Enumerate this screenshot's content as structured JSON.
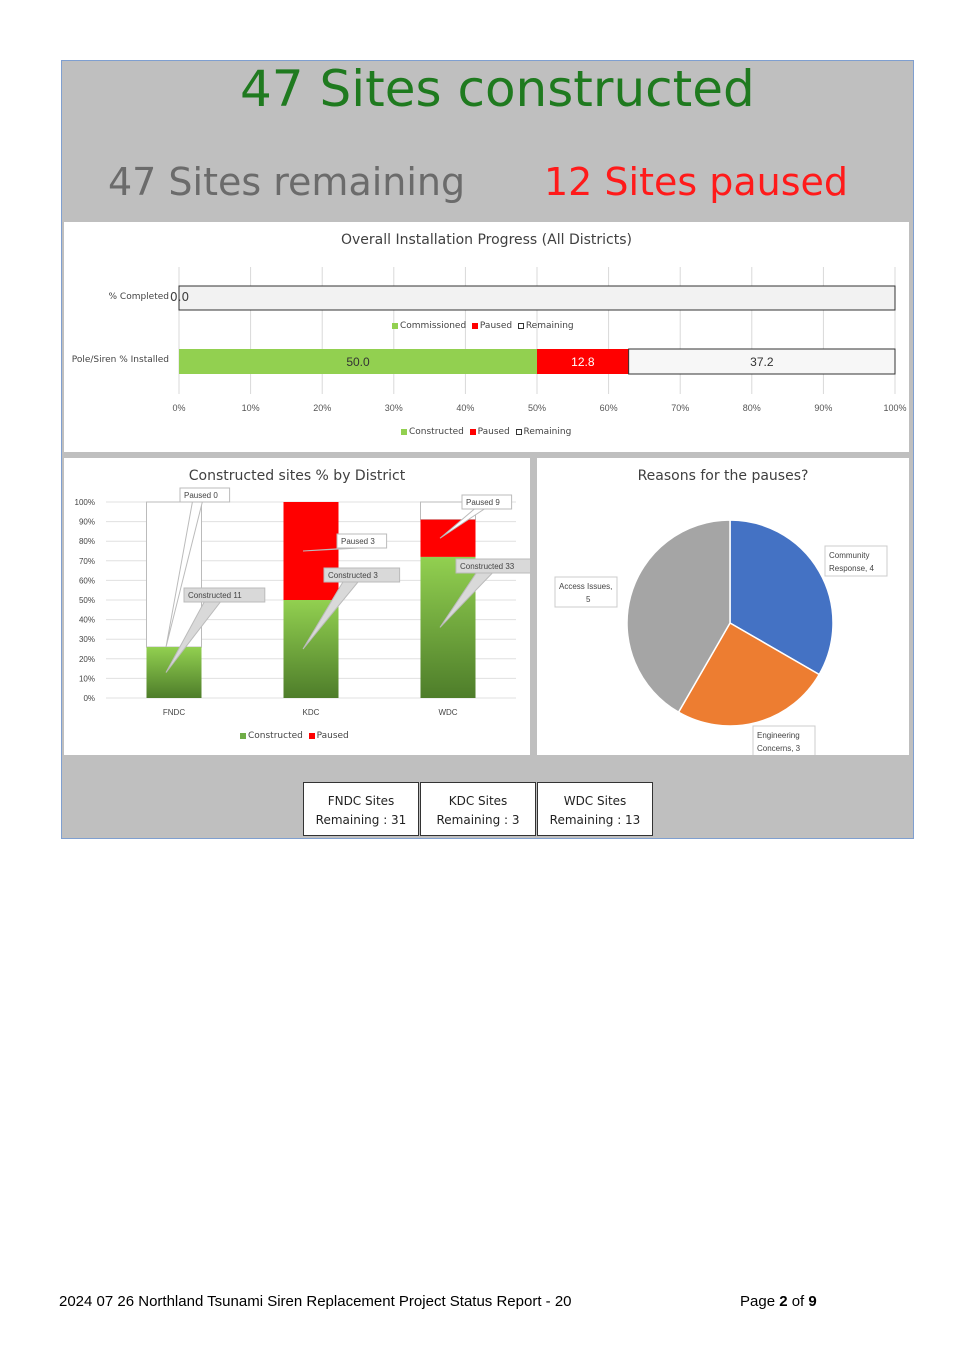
{
  "header": {
    "constructed": "47 Sites constructed",
    "remaining": "47 Sites remaining",
    "paused": "12 Sites paused",
    "colors": {
      "constructed": "#1f7a1f",
      "remaining": "#6b6b6b",
      "paused": "#ff1a1a"
    }
  },
  "chart_data": [
    {
      "type": "bar",
      "orientation": "horizontal-stacked",
      "title": "Overall Installation Progress (All Districts)",
      "categories": [
        "% Completed",
        "Pole/Siren % Installed"
      ],
      "rows": [
        {
          "label": "% Completed",
          "value_label": "0.0",
          "series": [
            {
              "name": "Commissioned",
              "value": 0
            },
            {
              "name": "Paused",
              "value": 0
            },
            {
              "name": "Remaining",
              "value": 100
            }
          ],
          "legend": [
            "Commissioned",
            "Paused",
            "Remaining"
          ]
        },
        {
          "label": "Pole/Siren % Installed",
          "series": [
            {
              "name": "Constructed",
              "value": 50.0,
              "label": "50.0"
            },
            {
              "name": "Paused",
              "value": 12.8,
              "label": "12.8"
            },
            {
              "name": "Remaining",
              "value": 37.2,
              "label": "37.2"
            }
          ],
          "legend": [
            "Constructed",
            "Paused",
            "Remaining"
          ]
        }
      ],
      "xticks": [
        "0%",
        "10%",
        "20%",
        "30%",
        "40%",
        "50%",
        "60%",
        "70%",
        "80%",
        "90%",
        "100%"
      ],
      "xlim": [
        0,
        100
      ]
    },
    {
      "type": "bar",
      "orientation": "vertical-stacked",
      "title": "Constructed sites % by District",
      "categories": [
        "FNDC",
        "KDC",
        "WDC"
      ],
      "series": [
        {
          "name": "Constructed",
          "values": [
            26,
            50,
            72
          ]
        },
        {
          "name": "Paused",
          "values": [
            0,
            50,
            19
          ]
        },
        {
          "name": "Remaining",
          "values": [
            74,
            0,
            9
          ]
        }
      ],
      "annotations": [
        {
          "paused": "Paused 0",
          "constructed": "Constructed 11"
        },
        {
          "paused": "Paused 3",
          "constructed": "Constructed 3"
        },
        {
          "paused": "Paused 9",
          "constructed": "Constructed 33"
        }
      ],
      "yticks": [
        "0%",
        "10%",
        "20%",
        "30%",
        "40%",
        "50%",
        "60%",
        "70%",
        "80%",
        "90%",
        "100%"
      ],
      "ylim": [
        0,
        100
      ],
      "legend": [
        "Constructed",
        "Paused"
      ]
    },
    {
      "type": "pie",
      "title": "Reasons for the pauses?",
      "slices": [
        {
          "label": "Community Response, 4",
          "line1": "Community",
          "line2": "Response, 4",
          "value": 4,
          "color": "#4472c4"
        },
        {
          "label": "Engineering Concerns, 3",
          "line1": "Engineering",
          "line2": "Concerns, 3",
          "value": 3,
          "color": "#ed7d31"
        },
        {
          "label": "Access Issues, 5",
          "line1": "Access Issues,",
          "line2": "5",
          "value": 5,
          "color": "#a5a5a5"
        }
      ]
    }
  ],
  "remaining_boxes": [
    {
      "l1": "FNDC Sites",
      "l2": "Remaining : 31"
    },
    {
      "l1": "KDC Sites",
      "l2": "Remaining : 3"
    },
    {
      "l1": "WDC Sites",
      "l2": "Remaining : 13"
    }
  ],
  "footer": {
    "left": "2024 07 26 Northland Tsunami Siren Replacement Project Status Report - 20",
    "page_prefix": "Page ",
    "page": "2",
    "of": " of ",
    "total": "9"
  }
}
